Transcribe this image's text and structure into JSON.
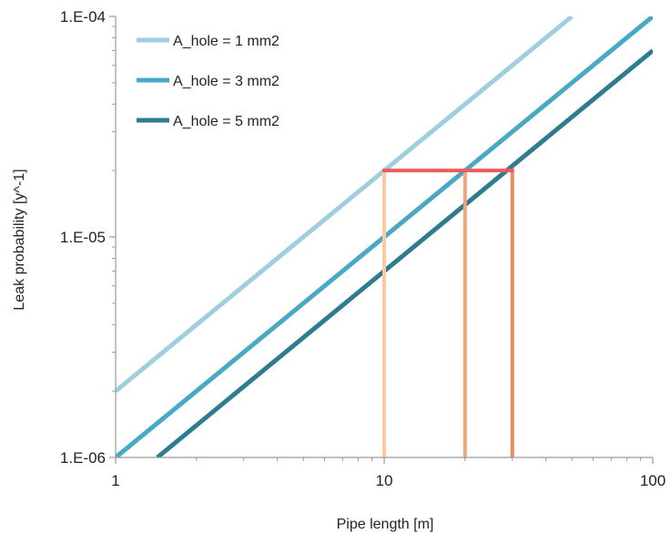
{
  "chart_data": {
    "type": "line",
    "title": "",
    "xlabel": "Pipe length [m]",
    "ylabel": "Leak probability [y^-1]",
    "xscale": "log",
    "yscale": "log",
    "xlim": [
      1,
      100
    ],
    "ylim": [
      1e-06,
      0.0001
    ],
    "xticks": [
      {
        "value": 1,
        "label": "1"
      },
      {
        "value": 10,
        "label": "10"
      },
      {
        "value": 100,
        "label": "100"
      }
    ],
    "yticks": [
      {
        "value": 1e-06,
        "label": "1.E-06"
      },
      {
        "value": 1e-05,
        "label": "1.E-05"
      },
      {
        "value": 0.0001,
        "label": "1.E-04"
      }
    ],
    "grid": false,
    "legend_position": "top-left",
    "series": [
      {
        "name": "A_hole = 1 mm2",
        "color": "#9fcfdf",
        "x": [
          1,
          50
        ],
        "y": [
          2e-06,
          0.0001
        ]
      },
      {
        "name": "A_hole = 3 mm2",
        "color": "#47a9c3",
        "x": [
          1,
          100
        ],
        "y": [
          1e-06,
          0.0001
        ]
      },
      {
        "name": "A_hole = 5 mm2",
        "color": "#2e7c90",
        "x": [
          1.43,
          100
        ],
        "y": [
          1e-06,
          7e-05
        ]
      }
    ],
    "annotations": [
      {
        "type": "hline",
        "y": 2e-05,
        "x_from": 10,
        "x_to": 30,
        "color": "#ef5a5f"
      },
      {
        "type": "vline",
        "x": 10,
        "y_from": 1e-06,
        "y_to": 2e-05,
        "color": "#fcc9a0"
      },
      {
        "type": "vline",
        "x": 20,
        "y_from": 1e-06,
        "y_to": 2e-05,
        "color": "#f3a47a"
      },
      {
        "type": "vline",
        "x": 30,
        "y_from": 1e-06,
        "y_to": 2e-05,
        "color": "#e98a60"
      }
    ]
  }
}
